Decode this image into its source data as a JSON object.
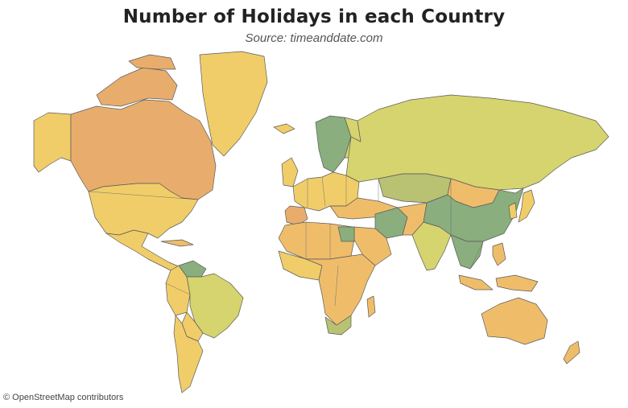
{
  "title": "Number of Holidays in each Country",
  "subtitle": "Source: timeanddate.com",
  "attribution": "© OpenStreetMap contributors",
  "colors": {
    "orange": "#e8ad6c",
    "light_orange": "#efbd6a",
    "yellow": "#f0cd69",
    "yellow_green": "#d5d46e",
    "olive": "#b9c173",
    "green": "#8aae7e",
    "water": "#ffffff"
  }
}
